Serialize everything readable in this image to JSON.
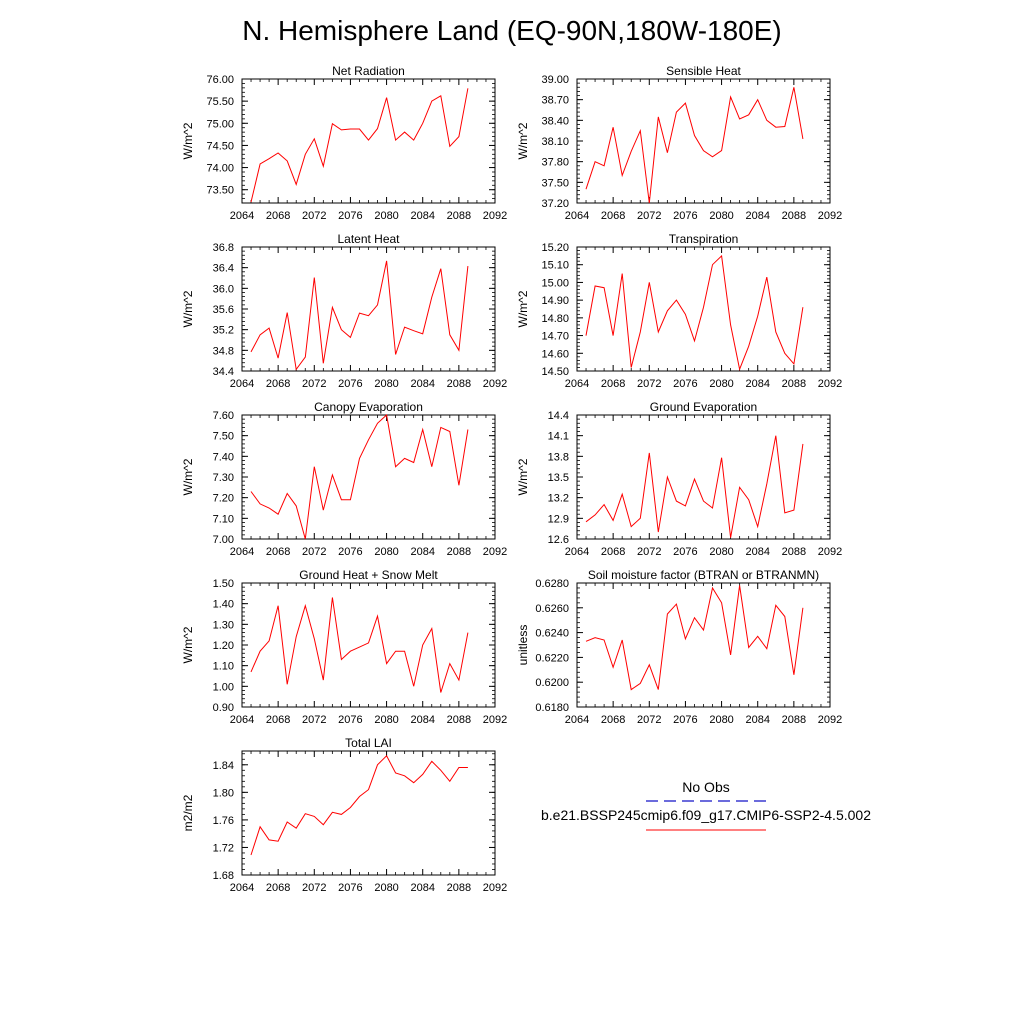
{
  "title": "N. Hemisphere Land (EQ-90N,180W-180E)",
  "legend": {
    "obs_label": "No Obs",
    "obs_color": "#3a3ad0",
    "model_label": "b.e21.BSSP245cmip6.f09_g17.CMIP6-SSP2-4.5.002",
    "model_color": "#ff0000"
  },
  "line_color": "#ff0000",
  "chart_data": [
    {
      "type": "line",
      "title": "Net Radiation",
      "ylabel": "W/m^2",
      "xlim": [
        2064,
        2092
      ],
      "xticks": [
        "2064",
        "2068",
        "2072",
        "2076",
        "2080",
        "2084",
        "2088",
        "2092"
      ],
      "ylim": [
        73.2,
        76.0
      ],
      "yticks": [
        "73.50",
        "74.00",
        "74.50",
        "75.00",
        "75.50",
        "76.00"
      ],
      "x": [
        2065,
        2066,
        2067,
        2068,
        2069,
        2070,
        2071,
        2072,
        2073,
        2074,
        2075,
        2076,
        2077,
        2078,
        2079,
        2080,
        2081,
        2082,
        2083,
        2084,
        2085,
        2086,
        2087,
        2088,
        2089
      ],
      "values": [
        73.22,
        74.08,
        74.2,
        74.33,
        74.15,
        73.62,
        74.3,
        74.65,
        74.03,
        74.99,
        74.85,
        74.87,
        74.87,
        74.62,
        74.88,
        75.58,
        74.62,
        74.8,
        74.62,
        75.0,
        75.5,
        75.62,
        74.48,
        74.7,
        75.79
      ]
    },
    {
      "type": "line",
      "title": "Sensible Heat",
      "ylabel": "W/m^2",
      "xlim": [
        2064,
        2092
      ],
      "xticks": [
        "2064",
        "2068",
        "2072",
        "2076",
        "2080",
        "2084",
        "2088",
        "2092"
      ],
      "ylim": [
        37.2,
        39.0
      ],
      "yticks": [
        "37.20",
        "37.50",
        "37.80",
        "38.10",
        "38.40",
        "38.70",
        "39.00"
      ],
      "x": [
        2065,
        2066,
        2067,
        2068,
        2069,
        2070,
        2071,
        2072,
        2073,
        2074,
        2075,
        2076,
        2077,
        2078,
        2079,
        2080,
        2081,
        2082,
        2083,
        2084,
        2085,
        2086,
        2087,
        2088,
        2089
      ],
      "values": [
        37.4,
        37.8,
        37.74,
        38.3,
        37.6,
        37.95,
        38.25,
        37.2,
        38.45,
        37.93,
        38.52,
        38.65,
        38.18,
        37.96,
        37.87,
        37.96,
        38.74,
        38.42,
        38.48,
        38.7,
        38.4,
        38.3,
        38.31,
        38.88,
        38.13
      ]
    },
    {
      "type": "line",
      "title": "Latent Heat",
      "ylabel": "W/m^2",
      "xlim": [
        2064,
        2092
      ],
      "xticks": [
        "2064",
        "2068",
        "2072",
        "2076",
        "2080",
        "2084",
        "2088",
        "2092"
      ],
      "ylim": [
        34.4,
        36.8
      ],
      "yticks": [
        "34.4",
        "34.8",
        "35.2",
        "35.6",
        "36.0",
        "36.4",
        "36.8"
      ],
      "x": [
        2065,
        2066,
        2067,
        2068,
        2069,
        2070,
        2071,
        2072,
        2073,
        2074,
        2075,
        2076,
        2077,
        2078,
        2079,
        2080,
        2081,
        2082,
        2083,
        2084,
        2085,
        2086,
        2087,
        2088,
        2089
      ],
      "values": [
        34.77,
        35.1,
        35.23,
        34.65,
        35.53,
        34.43,
        34.67,
        36.21,
        34.55,
        35.63,
        35.2,
        35.05,
        35.52,
        35.47,
        35.68,
        36.53,
        34.72,
        35.25,
        35.18,
        35.12,
        35.83,
        36.38,
        35.1,
        34.8,
        36.43
      ]
    },
    {
      "type": "line",
      "title": "Transpiration",
      "ylabel": "W/m^2",
      "xlim": [
        2064,
        2092
      ],
      "xticks": [
        "2064",
        "2068",
        "2072",
        "2076",
        "2080",
        "2084",
        "2088",
        "2092"
      ],
      "ylim": [
        14.5,
        15.2
      ],
      "yticks": [
        "14.50",
        "14.60",
        "14.70",
        "14.80",
        "14.90",
        "15.00",
        "15.10",
        "15.20"
      ],
      "x": [
        2065,
        2066,
        2067,
        2068,
        2069,
        2070,
        2071,
        2072,
        2073,
        2074,
        2075,
        2076,
        2077,
        2078,
        2079,
        2080,
        2081,
        2082,
        2083,
        2084,
        2085,
        2086,
        2087,
        2088,
        2089
      ],
      "values": [
        14.7,
        14.98,
        14.97,
        14.7,
        15.05,
        14.52,
        14.72,
        15.0,
        14.72,
        14.84,
        14.9,
        14.82,
        14.67,
        14.86,
        15.1,
        15.15,
        14.76,
        14.51,
        14.64,
        14.81,
        15.03,
        14.72,
        14.6,
        14.54,
        14.86
      ]
    },
    {
      "type": "line",
      "title": "Canopy Evaporation",
      "ylabel": "W/m^2",
      "xlim": [
        2064,
        2092
      ],
      "xticks": [
        "2064",
        "2068",
        "2072",
        "2076",
        "2080",
        "2084",
        "2088",
        "2092"
      ],
      "ylim": [
        7.0,
        7.6
      ],
      "yticks": [
        "7.00",
        "7.10",
        "7.20",
        "7.30",
        "7.40",
        "7.50",
        "7.60"
      ],
      "x": [
        2065,
        2066,
        2067,
        2068,
        2069,
        2070,
        2071,
        2072,
        2073,
        2074,
        2075,
        2076,
        2077,
        2078,
        2079,
        2080,
        2081,
        2082,
        2083,
        2084,
        2085,
        2086,
        2087,
        2088,
        2089
      ],
      "values": [
        7.23,
        7.17,
        7.15,
        7.12,
        7.22,
        7.16,
        7.0,
        7.35,
        7.14,
        7.31,
        7.19,
        7.19,
        7.39,
        7.48,
        7.56,
        7.6,
        7.35,
        7.39,
        7.37,
        7.53,
        7.35,
        7.54,
        7.52,
        7.26,
        7.53
      ]
    },
    {
      "type": "line",
      "title": "Ground Evaporation",
      "ylabel": "W/m^2",
      "xlim": [
        2064,
        2092
      ],
      "xticks": [
        "2064",
        "2068",
        "2072",
        "2076",
        "2080",
        "2084",
        "2088",
        "2092"
      ],
      "ylim": [
        12.6,
        14.4
      ],
      "yticks": [
        "12.6",
        "12.9",
        "13.2",
        "13.5",
        "13.8",
        "14.1",
        "14.4"
      ],
      "x": [
        2065,
        2066,
        2067,
        2068,
        2069,
        2070,
        2071,
        2072,
        2073,
        2074,
        2075,
        2076,
        2077,
        2078,
        2079,
        2080,
        2081,
        2082,
        2083,
        2084,
        2085,
        2086,
        2087,
        2088,
        2089
      ],
      "values": [
        12.85,
        12.95,
        13.1,
        12.87,
        13.25,
        12.78,
        12.9,
        13.85,
        12.7,
        13.5,
        13.15,
        13.08,
        13.47,
        13.15,
        13.05,
        13.78,
        12.62,
        13.35,
        13.17,
        12.78,
        13.4,
        14.1,
        12.98,
        13.02,
        13.98
      ]
    },
    {
      "type": "line",
      "title": "Ground Heat + Snow Melt",
      "ylabel": "W/m^2",
      "xlim": [
        2064,
        2092
      ],
      "xticks": [
        "2064",
        "2068",
        "2072",
        "2076",
        "2080",
        "2084",
        "2088",
        "2092"
      ],
      "ylim": [
        0.9,
        1.5
      ],
      "yticks": [
        "0.90",
        "1.00",
        "1.10",
        "1.20",
        "1.30",
        "1.40",
        "1.50"
      ],
      "x": [
        2065,
        2066,
        2067,
        2068,
        2069,
        2070,
        2071,
        2072,
        2073,
        2074,
        2075,
        2076,
        2077,
        2078,
        2079,
        2080,
        2081,
        2082,
        2083,
        2084,
        2085,
        2086,
        2087,
        2088,
        2089
      ],
      "values": [
        1.07,
        1.17,
        1.22,
        1.39,
        1.01,
        1.24,
        1.39,
        1.23,
        1.03,
        1.43,
        1.13,
        1.17,
        1.19,
        1.21,
        1.34,
        1.11,
        1.17,
        1.17,
        1.0,
        1.2,
        1.28,
        0.97,
        1.11,
        1.03,
        1.26
      ]
    },
    {
      "type": "line",
      "title": "Soil moisture factor (BTRAN or BTRANMN)",
      "ylabel": "unitless",
      "xlim": [
        2064,
        2092
      ],
      "xticks": [
        "2064",
        "2068",
        "2072",
        "2076",
        "2080",
        "2084",
        "2088",
        "2092"
      ],
      "ylim": [
        0.618,
        0.628
      ],
      "yticks": [
        "0.6180",
        "0.6200",
        "0.6220",
        "0.6240",
        "0.6260",
        "0.6280"
      ],
      "x": [
        2065,
        2066,
        2067,
        2068,
        2069,
        2070,
        2071,
        2072,
        2073,
        2074,
        2075,
        2076,
        2077,
        2078,
        2079,
        2080,
        2081,
        2082,
        2083,
        2084,
        2085,
        2086,
        2087,
        2088,
        2089
      ],
      "values": [
        0.6233,
        0.6236,
        0.6234,
        0.6212,
        0.6234,
        0.6194,
        0.6199,
        0.6214,
        0.6194,
        0.6255,
        0.6263,
        0.6235,
        0.6252,
        0.6242,
        0.6276,
        0.6264,
        0.6222,
        0.6278,
        0.6228,
        0.6237,
        0.6227,
        0.6262,
        0.6253,
        0.6206,
        0.626
      ]
    },
    {
      "type": "line",
      "title": "Total LAI",
      "ylabel": "m2/m2",
      "xlim": [
        2064,
        2092
      ],
      "xticks": [
        "2064",
        "2068",
        "2072",
        "2076",
        "2080",
        "2084",
        "2088",
        "2092"
      ],
      "ylim": [
        1.68,
        1.86
      ],
      "yticks": [
        "1.68",
        "1.72",
        "1.76",
        "1.80",
        "1.84"
      ],
      "x": [
        2065,
        2066,
        2067,
        2068,
        2069,
        2070,
        2071,
        2072,
        2073,
        2074,
        2075,
        2076,
        2077,
        2078,
        2079,
        2080,
        2081,
        2082,
        2083,
        2084,
        2085,
        2086,
        2087,
        2088,
        2089
      ],
      "values": [
        1.709,
        1.75,
        1.731,
        1.729,
        1.757,
        1.748,
        1.769,
        1.765,
        1.753,
        1.771,
        1.768,
        1.778,
        1.794,
        1.804,
        1.84,
        1.853,
        1.828,
        1.824,
        1.814,
        1.826,
        1.845,
        1.832,
        1.816,
        1.836,
        1.836
      ]
    }
  ]
}
